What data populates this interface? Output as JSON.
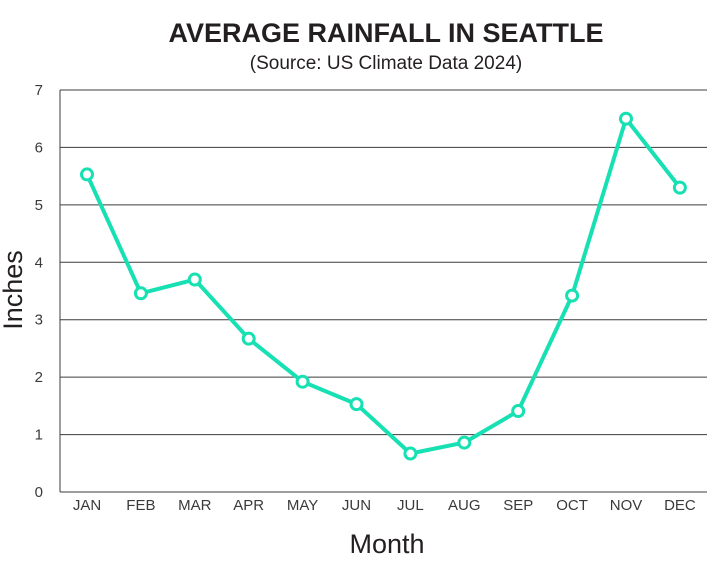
{
  "chart_data": {
    "type": "line",
    "title": "AVERAGE RAINFALL IN SEATTLE",
    "subtitle": "(Source: US Climate Data 2024)",
    "xlabel": "Month",
    "ylabel": "Inches",
    "categories": [
      "JAN",
      "FEB",
      "MAR",
      "APR",
      "MAY",
      "JUN",
      "JUL",
      "AUG",
      "SEP",
      "OCT",
      "NOV",
      "DEC"
    ],
    "series": [
      {
        "values": [
          5.53,
          3.46,
          3.7,
          2.67,
          1.92,
          1.53,
          0.67,
          0.86,
          1.41,
          3.42,
          6.5,
          5.3
        ]
      }
    ],
    "ylim": [
      0,
      7
    ],
    "yticks": [
      0,
      1,
      2,
      3,
      4,
      5,
      6,
      7
    ],
    "grid": true,
    "legend": "none",
    "colors": {
      "line": "#17e0b3",
      "marker_fill": "#ffffff",
      "grid": "#3c3c3c",
      "text": "#231f20"
    }
  }
}
